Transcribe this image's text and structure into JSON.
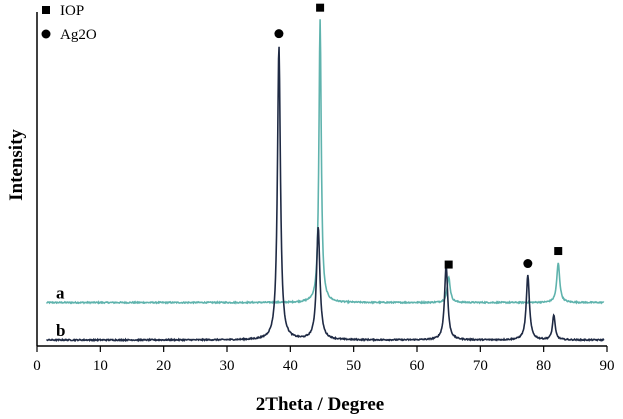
{
  "chart_data": {
    "type": "line",
    "xlabel": "2Theta / Degree",
    "ylabel": "Intensity",
    "xlim": [
      0,
      90
    ],
    "x_ticks": [
      0,
      10,
      20,
      30,
      40,
      50,
      60,
      70,
      80,
      90
    ],
    "grid": false,
    "legend": {
      "placement": "top-left",
      "entries": [
        {
          "marker": "square",
          "text": "IOP"
        },
        {
          "marker": "circle",
          "text": "Ag2O"
        }
      ]
    },
    "series": [
      {
        "name": "a",
        "color": "#5fb3ad",
        "baseline": 0.36,
        "noise": 0.006,
        "peaks": [
          {
            "x": 44.7,
            "height": 2.72,
            "width": 0.22,
            "marker": "square"
          },
          {
            "x": 65.0,
            "height": 0.25,
            "width": 0.28,
            "marker": "square"
          },
          {
            "x": 82.3,
            "height": 0.38,
            "width": 0.28,
            "marker": "square"
          }
        ]
      },
      {
        "name": "b",
        "color": "#1f2a44",
        "baseline": 0.0,
        "noise": 0.006,
        "peaks": [
          {
            "x": 38.2,
            "height": 2.83,
            "width": 0.28,
            "marker": "circle"
          },
          {
            "x": 44.4,
            "height": 1.08,
            "width": 0.32,
            "marker": null
          },
          {
            "x": 64.6,
            "height": 0.72,
            "width": 0.3,
            "marker": null
          },
          {
            "x": 77.5,
            "height": 0.62,
            "width": 0.3,
            "marker": "circle"
          },
          {
            "x": 81.6,
            "height": 0.24,
            "width": 0.25,
            "marker": null
          }
        ]
      }
    ]
  }
}
